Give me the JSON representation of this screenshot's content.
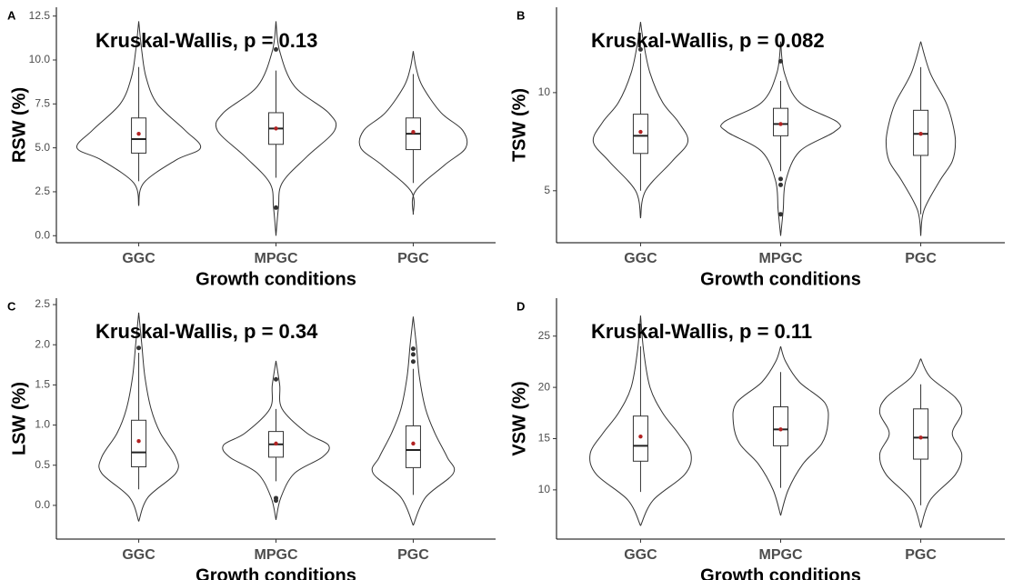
{
  "chart_data": [
    {
      "type": "violin",
      "panel_label": "A",
      "annotation": "Kruskal-Wallis, p = 0.13",
      "y_label": "RSW (%)",
      "x_label": "Growth conditions",
      "categories": [
        "GGC",
        "MPGC",
        "PGC"
      ],
      "ylim": [
        -0.4,
        13.0
      ],
      "yticks": [
        {
          "value": 0,
          "label": "0.0"
        },
        2.5,
        {
          "value": 5,
          "label": "5.0"
        },
        7.5,
        {
          "value": 10,
          "label": "10.0"
        },
        12.5
      ],
      "violin_color": "#333333",
      "mean_color": "#b22222",
      "outlier_color": "#333333",
      "violins": [
        {
          "y": [
            1.7,
            3,
            4.3,
            5,
            6,
            7.5,
            9,
            10.5,
            12.2
          ],
          "width": [
            0,
            0.08,
            0.6,
            1,
            0.75,
            0.3,
            0.12,
            0.05,
            0
          ]
        },
        {
          "y": [
            0,
            1.6,
            3,
            4.5,
            6,
            7,
            8.5,
            10.5,
            12.2
          ],
          "width": [
            0,
            0.04,
            0.1,
            0.5,
            0.95,
            0.85,
            0.3,
            0.06,
            0
          ]
        },
        {
          "y": [
            1.2,
            2.5,
            4,
            5,
            6,
            7,
            8.5,
            9.5,
            10.5
          ],
          "width": [
            0,
            0.03,
            0.5,
            0.85,
            0.8,
            0.45,
            0.15,
            0.05,
            0
          ]
        }
      ],
      "boxes": [
        {
          "whisker_low": 3.1,
          "q1": 4.7,
          "median": 5.5,
          "q3": 6.7,
          "whisker_high": 9.6
        },
        {
          "whisker_low": 3.3,
          "q1": 5.2,
          "median": 6.1,
          "q3": 7.0,
          "whisker_high": 9.4
        },
        {
          "whisker_low": 3.0,
          "q1": 4.9,
          "median": 5.8,
          "q3": 6.7,
          "whisker_high": 9.2
        }
      ],
      "means": [
        5.8,
        6.1,
        5.9
      ],
      "outliers": [
        [],
        [
          1.6,
          10.6
        ],
        []
      ]
    },
    {
      "type": "violin",
      "panel_label": "B",
      "annotation": "Kruskal-Wallis, p = 0.082",
      "y_label": "TSW (%)",
      "x_label": "Growth conditions",
      "categories": [
        "GGC",
        "MPGC",
        "PGC"
      ],
      "ylim": [
        2.35,
        14.35
      ],
      "yticks": [
        5,
        10
      ],
      "violin_color": "#333333",
      "mean_color": "#b22222",
      "outlier_color": "#333333",
      "violins": [
        {
          "y": [
            3.6,
            5,
            6.5,
            7.5,
            8.5,
            9.5,
            11,
            12.5,
            13.6
          ],
          "width": [
            0,
            0.08,
            0.5,
            0.75,
            0.6,
            0.35,
            0.15,
            0.05,
            0
          ]
        },
        {
          "y": [
            2.7,
            4,
            5.5,
            7,
            8,
            8.5,
            9.5,
            11,
            12.6
          ],
          "width": [
            0,
            0.04,
            0.08,
            0.3,
            0.85,
            0.9,
            0.3,
            0.06,
            0
          ]
        },
        {
          "y": [
            2.7,
            4,
            5.5,
            6.5,
            7.5,
            8.5,
            9.5,
            11,
            12.6
          ],
          "width": [
            0,
            0.05,
            0.3,
            0.5,
            0.55,
            0.5,
            0.4,
            0.15,
            0
          ]
        }
      ],
      "boxes": [
        {
          "whisker_low": 5.0,
          "q1": 6.9,
          "median": 7.8,
          "q3": 8.9,
          "whisker_high": 12.0
        },
        {
          "whisker_low": 6.0,
          "q1": 7.8,
          "median": 8.4,
          "q3": 9.2,
          "whisker_high": 10.6
        },
        {
          "whisker_low": 3.8,
          "q1": 6.8,
          "median": 7.9,
          "q3": 9.1,
          "whisker_high": 11.3
        }
      ],
      "means": [
        8.0,
        8.4,
        7.9
      ],
      "outliers": [
        [
          12.2
        ],
        [
          11.6,
          5.6,
          5.3,
          3.8
        ],
        []
      ]
    },
    {
      "type": "violin",
      "panel_label": "C",
      "annotation": "Kruskal-Wallis, p = 0.34",
      "y_label": "LSW (%)",
      "x_label": "Growth conditions",
      "categories": [
        "GGC",
        "MPGC",
        "PGC"
      ],
      "ylim": [
        -0.42,
        2.58
      ],
      "yticks": [
        {
          "value": 0,
          "label": "0.0"
        },
        0.5,
        {
          "value": 1,
          "label": "1.0"
        },
        1.5,
        {
          "value": 2,
          "label": "2.0"
        },
        2.5
      ],
      "violin_color": "#333333",
      "mean_color": "#b22222",
      "outlier_color": "#333333",
      "violins": [
        {
          "y": [
            -0.2,
            0.1,
            0.4,
            0.6,
            0.9,
            1.2,
            1.6,
            2.0,
            2.4
          ],
          "width": [
            0,
            0.15,
            0.6,
            0.6,
            0.35,
            0.2,
            0.1,
            0.05,
            0
          ]
        },
        {
          "y": [
            -0.18,
            0.1,
            0.4,
            0.6,
            0.75,
            0.9,
            1.2,
            1.5,
            1.8
          ],
          "width": [
            0,
            0.08,
            0.3,
            0.75,
            0.85,
            0.5,
            0.1,
            0.06,
            0
          ]
        },
        {
          "y": [
            -0.25,
            0.1,
            0.4,
            0.6,
            0.9,
            1.2,
            1.6,
            2.0,
            2.35
          ],
          "width": [
            0,
            0.2,
            0.65,
            0.55,
            0.35,
            0.2,
            0.1,
            0.05,
            0
          ]
        }
      ],
      "boxes": [
        {
          "whisker_low": 0.2,
          "q1": 0.48,
          "median": 0.66,
          "q3": 1.06,
          "whisker_high": 1.9
        },
        {
          "whisker_low": 0.3,
          "q1": 0.6,
          "median": 0.76,
          "q3": 0.92,
          "whisker_high": 1.2
        },
        {
          "whisker_low": 0.13,
          "q1": 0.47,
          "median": 0.69,
          "q3": 0.99,
          "whisker_high": 1.7
        }
      ],
      "means": [
        0.8,
        0.77,
        0.77
      ],
      "outliers": [
        [
          1.96
        ],
        [
          1.57,
          0.09,
          0.06
        ],
        [
          1.95,
          1.88,
          1.79
        ]
      ]
    },
    {
      "type": "violin",
      "panel_label": "D",
      "annotation": "Kruskal-Wallis, p = 0.11",
      "y_label": "VSW (%)",
      "x_label": "Growth conditions",
      "categories": [
        "GGC",
        "MPGC",
        "PGC"
      ],
      "ylim": [
        5.2,
        28.7
      ],
      "yticks": [
        10,
        15,
        20,
        25
      ],
      "violin_color": "#333333",
      "mean_color": "#b22222",
      "outlier_color": "#333333",
      "violins": [
        {
          "y": [
            6.5,
            9,
            11.5,
            13.5,
            15.5,
            17.5,
            20,
            23.5,
            27
          ],
          "width": [
            0,
            0.2,
            0.7,
            0.8,
            0.6,
            0.35,
            0.15,
            0.05,
            0
          ]
        },
        {
          "y": [
            7.5,
            10,
            12.5,
            14.5,
            16.5,
            18.5,
            20.5,
            22.5,
            24
          ],
          "width": [
            0,
            0.12,
            0.35,
            0.65,
            0.75,
            0.7,
            0.3,
            0.08,
            0
          ]
        },
        {
          "y": [
            6.3,
            9,
            11.5,
            13.5,
            15.5,
            17.5,
            19,
            21,
            22.8
          ],
          "width": [
            0,
            0.15,
            0.55,
            0.65,
            0.5,
            0.65,
            0.55,
            0.15,
            0
          ]
        }
      ],
      "boxes": [
        {
          "whisker_low": 9.8,
          "q1": 12.8,
          "median": 14.3,
          "q3": 17.2,
          "whisker_high": 24.0
        },
        {
          "whisker_low": 10.2,
          "q1": 14.3,
          "median": 15.9,
          "q3": 18.1,
          "whisker_high": 21.5
        },
        {
          "whisker_low": 8.5,
          "q1": 13.0,
          "median": 15.1,
          "q3": 17.9,
          "whisker_high": 20.3
        }
      ],
      "means": [
        15.2,
        15.9,
        15.1
      ],
      "outliers": [
        [],
        [],
        []
      ]
    }
  ]
}
